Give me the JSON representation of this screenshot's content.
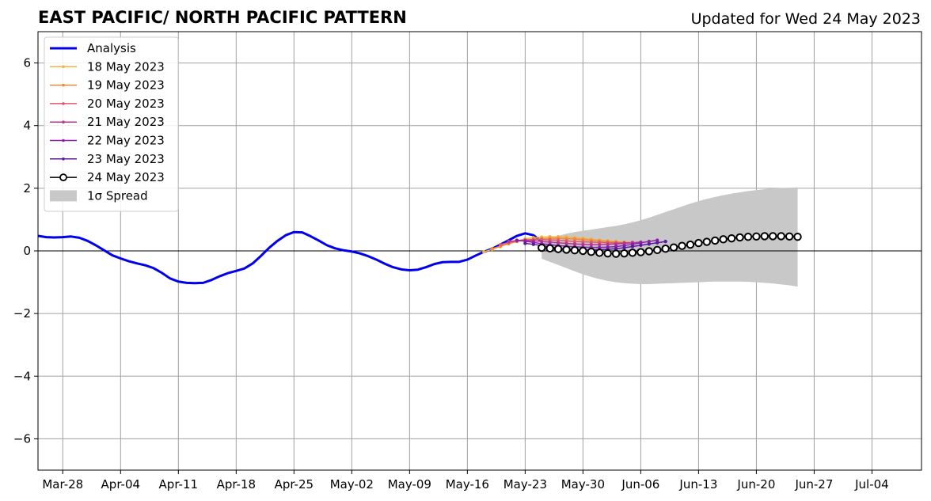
{
  "chart_data": {
    "type": "line",
    "title": "EAST PACIFIC/ NORTH PACIFIC PATTERN",
    "subtitle": "Updated for Wed 24 May 2023",
    "xlabel": "",
    "ylabel": "",
    "xlim": [
      "2023-03-25",
      "2023-07-10"
    ],
    "ylim": [
      -7,
      7
    ],
    "x_ticks": [
      "Mar-28",
      "Apr-04",
      "Apr-11",
      "Apr-18",
      "Apr-25",
      "May-02",
      "May-09",
      "May-16",
      "May-23",
      "May-30",
      "Jun-06",
      "Jun-13",
      "Jun-20",
      "Jun-27",
      "Jul-04"
    ],
    "x_tick_dates": [
      "2023-03-28",
      "2023-04-04",
      "2023-04-11",
      "2023-04-18",
      "2023-04-25",
      "2023-05-02",
      "2023-05-09",
      "2023-05-16",
      "2023-05-23",
      "2023-05-30",
      "2023-06-06",
      "2023-06-13",
      "2023-06-20",
      "2023-06-27",
      "2023-07-04"
    ],
    "y_ticks": [
      "6",
      "4",
      "2",
      "0",
      "−2",
      "−4",
      "−6"
    ],
    "y_tick_values": [
      6,
      4,
      2,
      0,
      -2,
      -4,
      -6
    ],
    "grid": true,
    "legend_position": "top-left",
    "analysis": {
      "name": "Analysis",
      "color": "#0000ee",
      "points": [
        [
          "2023-03-25",
          0.48
        ],
        [
          "2023-03-26",
          0.44
        ],
        [
          "2023-03-27",
          0.43
        ],
        [
          "2023-03-28",
          0.44
        ],
        [
          "2023-03-29",
          0.46
        ],
        [
          "2023-03-30",
          0.42
        ],
        [
          "2023-03-31",
          0.32
        ],
        [
          "2023-04-01",
          0.18
        ],
        [
          "2023-04-02",
          0.02
        ],
        [
          "2023-04-03",
          -0.14
        ],
        [
          "2023-04-04",
          -0.24
        ],
        [
          "2023-04-05",
          -0.33
        ],
        [
          "2023-04-06",
          -0.4
        ],
        [
          "2023-04-07",
          -0.46
        ],
        [
          "2023-04-08",
          -0.55
        ],
        [
          "2023-04-09",
          -0.7
        ],
        [
          "2023-04-10",
          -0.88
        ],
        [
          "2023-04-11",
          -0.98
        ],
        [
          "2023-04-12",
          -1.02
        ],
        [
          "2023-04-13",
          -1.03
        ],
        [
          "2023-04-14",
          -1.02
        ],
        [
          "2023-04-15",
          -0.93
        ],
        [
          "2023-04-16",
          -0.81
        ],
        [
          "2023-04-17",
          -0.71
        ],
        [
          "2023-04-18",
          -0.64
        ],
        [
          "2023-04-19",
          -0.56
        ],
        [
          "2023-04-20",
          -0.4
        ],
        [
          "2023-04-21",
          -0.16
        ],
        [
          "2023-04-22",
          0.1
        ],
        [
          "2023-04-23",
          0.32
        ],
        [
          "2023-04-24",
          0.5
        ],
        [
          "2023-04-25",
          0.6
        ],
        [
          "2023-04-26",
          0.59
        ],
        [
          "2023-04-27",
          0.47
        ],
        [
          "2023-04-28",
          0.33
        ],
        [
          "2023-04-29",
          0.18
        ],
        [
          "2023-04-30",
          0.08
        ],
        [
          "2023-05-01",
          0.02
        ],
        [
          "2023-05-02",
          -0.02
        ],
        [
          "2023-05-03",
          -0.08
        ],
        [
          "2023-05-04",
          -0.17
        ],
        [
          "2023-05-05",
          -0.28
        ],
        [
          "2023-05-06",
          -0.41
        ],
        [
          "2023-05-07",
          -0.52
        ],
        [
          "2023-05-08",
          -0.59
        ],
        [
          "2023-05-09",
          -0.62
        ],
        [
          "2023-05-10",
          -0.6
        ],
        [
          "2023-05-11",
          -0.52
        ],
        [
          "2023-05-12",
          -0.42
        ],
        [
          "2023-05-13",
          -0.36
        ],
        [
          "2023-05-14",
          -0.35
        ],
        [
          "2023-05-15",
          -0.35
        ],
        [
          "2023-05-16",
          -0.28
        ],
        [
          "2023-05-17",
          -0.15
        ],
        [
          "2023-05-18",
          -0.03
        ],
        [
          "2023-05-19",
          0.07
        ],
        [
          "2023-05-20",
          0.2
        ],
        [
          "2023-05-21",
          0.34
        ],
        [
          "2023-05-22",
          0.48
        ],
        [
          "2023-05-23",
          0.56
        ],
        [
          "2023-05-24",
          0.5
        ],
        [
          "2023-05-25",
          0.3
        ]
      ]
    },
    "forecasts": [
      {
        "name": "18 May 2023",
        "color": "#f5b33d",
        "start": "2023-05-18",
        "values": [
          -0.03,
          0.05,
          0.14,
          0.24,
          0.32,
          0.38,
          0.42,
          0.44,
          0.45,
          0.45,
          0.44,
          0.42,
          0.4,
          0.37,
          0.34,
          0.32,
          0.3,
          0.28,
          0.26
        ]
      },
      {
        "name": "19 May 2023",
        "color": "#f08a3c",
        "start": "2023-05-19",
        "values": [
          0.07,
          0.15,
          0.23,
          0.3,
          0.34,
          0.37,
          0.39,
          0.4,
          0.4,
          0.39,
          0.38,
          0.36,
          0.34,
          0.32,
          0.3,
          0.28,
          0.27,
          0.26
        ]
      },
      {
        "name": "20 May 2023",
        "color": "#dd5a6e",
        "start": "2023-05-20",
        "values": [
          0.2,
          0.27,
          0.32,
          0.35,
          0.36,
          0.36,
          0.35,
          0.34,
          0.32,
          0.3,
          0.29,
          0.28,
          0.27,
          0.26,
          0.26,
          0.26,
          0.27
        ]
      },
      {
        "name": "21 May 2023",
        "color": "#b6378f",
        "start": "2023-05-21",
        "values": [
          0.3,
          0.33,
          0.33,
          0.32,
          0.3,
          0.28,
          0.26,
          0.24,
          0.22,
          0.21,
          0.2,
          0.2,
          0.21,
          0.22,
          0.24,
          0.26,
          0.28
        ]
      },
      {
        "name": "22 May 2023",
        "color": "#8c1fae",
        "start": "2023-05-22",
        "values": [
          0.34,
          0.31,
          0.27,
          0.23,
          0.2,
          0.17,
          0.15,
          0.13,
          0.12,
          0.11,
          0.11,
          0.12,
          0.14,
          0.17,
          0.21,
          0.26,
          0.3,
          0.34
        ]
      },
      {
        "name": "23 May 2023",
        "color": "#5a1a9e",
        "start": "2023-05-23",
        "values": [
          0.24,
          0.21,
          0.17,
          0.13,
          0.09,
          0.06,
          0.04,
          0.03,
          0.03,
          0.04,
          0.05,
          0.07,
          0.1,
          0.14,
          0.18,
          0.22,
          0.26,
          0.3
        ]
      }
    ],
    "current": {
      "name": "24 May 2023",
      "start": "2023-05-25",
      "values": [
        0.1,
        0.08,
        0.06,
        0.04,
        0.02,
        0.0,
        -0.03,
        -0.06,
        -0.08,
        -0.09,
        -0.08,
        -0.06,
        -0.04,
        -0.01,
        0.03,
        0.07,
        0.11,
        0.16,
        0.2,
        0.25,
        0.29,
        0.33,
        0.37,
        0.4,
        0.43,
        0.45,
        0.46,
        0.47,
        0.47,
        0.47,
        0.46,
        0.45
      ]
    },
    "spread": {
      "name": "1σ Spread",
      "color": "#c8c8c8",
      "start": "2023-05-25",
      "upper": [
        0.3,
        0.4,
        0.48,
        0.55,
        0.6,
        0.64,
        0.68,
        0.72,
        0.76,
        0.8,
        0.85,
        0.91,
        0.98,
        1.06,
        1.15,
        1.24,
        1.33,
        1.42,
        1.51,
        1.59,
        1.66,
        1.72,
        1.78,
        1.83,
        1.87,
        1.91,
        1.94,
        1.97,
        1.99,
        2.01,
        2.02,
        2.03
      ],
      "lower": [
        -0.25,
        -0.35,
        -0.45,
        -0.55,
        -0.65,
        -0.75,
        -0.83,
        -0.9,
        -0.96,
        -1.0,
        -1.03,
        -1.05,
        -1.06,
        -1.06,
        -1.05,
        -1.04,
        -1.03,
        -1.02,
        -1.01,
        -1.0,
        -0.99,
        -0.98,
        -0.98,
        -0.98,
        -0.98,
        -0.99,
        -1.0,
        -1.02,
        -1.04,
        -1.07,
        -1.1,
        -1.14
      ]
    }
  }
}
